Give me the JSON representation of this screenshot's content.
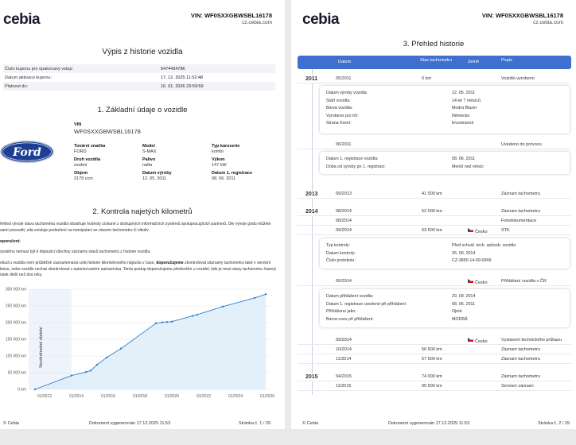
{
  "brand": "cebia",
  "vin_header": "VIN: WF0SXXGBWSBL16178",
  "site": "cz.cebia.com",
  "page1": {
    "title": "Výpis z historie vozidla",
    "coupon": [
      {
        "label": "Číslo kuponu pro opakovaný vstup:",
        "value": "5474434786"
      },
      {
        "label": "Datum aktivace kuponu:",
        "value": "17. 12. 2025 11:52:48"
      },
      {
        "label": "Platnost do:",
        "value": "16. 01. 2026 23:59:59"
      }
    ],
    "section1": "1. Základní údaje o vozidle",
    "car_logo_text": "Ford",
    "vin_label": "VIN",
    "vin_value": "WF0SXXGBWSBL16178",
    "specs": [
      {
        "label": "Tovární značka",
        "value": "FORD"
      },
      {
        "label": "Model",
        "value": "S-MAX"
      },
      {
        "label": "Typ karoserie",
        "value": "kombi"
      },
      {
        "label": "Druh vozidla",
        "value": "osobní"
      },
      {
        "label": "Palivo",
        "value": "nafta"
      },
      {
        "label": "Výkon",
        "value": "147 kW"
      },
      {
        "label": "Objem",
        "value": "2179 ccm"
      },
      {
        "label": "Datum výroby",
        "value": "12. 05. 2011"
      },
      {
        "label": "Datum 1. registrace",
        "value": "08. 06. 2011"
      }
    ],
    "section2": "2. Kontrola najetých kilometrů",
    "para1": "řehled vývoje stavu tachometru vozidla obsahuje hodnoty získané z dostupných informačních systémů spolupracujících partnerů. Dle vývoje grafu můžete sami posoudit, zda existuje podezření na manipulaci se stavem tachometru či nikoliv.",
    "para2_bold": "oporučení:",
    "para3": "systému nemusí být k dispozici všechny záznamy stavů tachometru z historie vozidla.",
    "para4_a": "okud u vozidla není průběžně zaznamenaná celá historie kilometrového nájezdu v čase, ",
    "para4_b": "doporučujeme",
    "para4_c": " zkontrolovat záznamy tachometru také v servisní knize, nebo vozidlo nechat zkontrolovat v autorizovaném autoservisu. Tento postup doporučujeme především u vozidel, kde je mezi stavy tachometru časový úsek delší než dva roky.",
    "footer_left": "© Cebia",
    "footer_center": "Dokument vygenerován 17.12.2025 11:53",
    "footer_right": "Stránka č. 1 / 29"
  },
  "chart_data": {
    "type": "area",
    "title": "",
    "xlabel": "",
    "ylabel": "",
    "y_ticks": [
      "0 km",
      "50 000 km",
      "100 000 km",
      "150 000 km",
      "200 000 km",
      "250 000 km",
      "300 000 km"
    ],
    "x_ticks": [
      "01/2012",
      "01/2014",
      "01/2016",
      "01/2018",
      "01/2020",
      "01/2022",
      "01/2024",
      "01/2026"
    ],
    "x_tick_values": [
      2012.0,
      2014.0,
      2016.0,
      2018.0,
      2020.0,
      2022.0,
      2024.0,
      2026.0
    ],
    "ylim": [
      0,
      300000
    ],
    "xlim": [
      2011.0,
      2026.2
    ],
    "annotation": "Nevěrohodné období",
    "annotation_range": [
      2011.0,
      2013.7
    ],
    "points": [
      {
        "x": 2011.4,
        "y": 0
      },
      {
        "x": 2013.7,
        "y": 41500
      },
      {
        "x": 2014.6,
        "y": 52000
      },
      {
        "x": 2014.9,
        "y": 56500
      },
      {
        "x": 2015.3,
        "y": 74000
      },
      {
        "x": 2015.9,
        "y": 95500
      },
      {
        "x": 2016.8,
        "y": 122000
      },
      {
        "x": 2019.0,
        "y": 198000
      },
      {
        "x": 2019.4,
        "y": 201000
      },
      {
        "x": 2019.7,
        "y": 202000
      },
      {
        "x": 2020.0,
        "y": 203000
      },
      {
        "x": 2021.3,
        "y": 220000
      },
      {
        "x": 2021.6,
        "y": 224000
      },
      {
        "x": 2023.2,
        "y": 248000
      },
      {
        "x": 2025.2,
        "y": 274000
      },
      {
        "x": 2025.9,
        "y": 285000
      }
    ],
    "grid": true
  },
  "page2": {
    "title": "3. Přehled historie",
    "headers": {
      "date": "Datum",
      "odo": "Stav tachometru",
      "country": "Země",
      "desc": "Popis"
    },
    "years": [
      {
        "label": "2011",
        "top": 94
      },
      {
        "label": "2013",
        "top": 239
      },
      {
        "label": "2014",
        "top": 261
      },
      {
        "label": "2015",
        "top": 469
      }
    ],
    "rows": [
      {
        "top": 94,
        "date": "05/2011",
        "odo": "0 km",
        "country": "",
        "flag": false,
        "desc": "Vozidlo vyrobeno"
      },
      {
        "top": 177,
        "date": "06/2011",
        "odo": "",
        "country": "",
        "flag": false,
        "desc": "Uvedeno do provozu"
      },
      {
        "top": 239,
        "date": "09/2013",
        "odo": "41 500 km",
        "country": "",
        "flag": false,
        "desc": "Záznam tachometru"
      },
      {
        "top": 261,
        "date": "08/2014",
        "odo": "52 000 km",
        "country": "",
        "flag": false,
        "desc": "Záznam tachometru"
      },
      {
        "top": 273,
        "date": "08/2014",
        "odo": "",
        "country": "",
        "flag": false,
        "desc": "Fotodokumentace"
      },
      {
        "top": 285,
        "date": "09/2014",
        "odo": "53 500 km",
        "country": "Česko",
        "flag": true,
        "desc": "STK"
      },
      {
        "top": 349,
        "date": "09/2014",
        "odo": "",
        "country": "Česko",
        "flag": true,
        "desc": "Přihlášení vozidla v ČR"
      },
      {
        "top": 423,
        "date": "09/2014",
        "odo": "",
        "country": "Česko",
        "flag": true,
        "desc": "Vystavení technického průkazu"
      },
      {
        "top": 435,
        "date": "10/2014",
        "odo": "56 500 km",
        "country": "",
        "flag": false,
        "desc": "Záznam tachometru"
      },
      {
        "top": 447,
        "date": "11/2014",
        "odo": "57 500 km",
        "country": "",
        "flag": false,
        "desc": "Záznam tachometru"
      },
      {
        "top": 469,
        "date": "04/2015",
        "odo": "74 000 km",
        "country": "",
        "flag": false,
        "desc": "Záznam tachometru"
      },
      {
        "top": 481,
        "date": "11/2015",
        "odo": "95 500 km",
        "country": "",
        "flag": false,
        "desc": "Servisní záznam"
      }
    ],
    "details": [
      {
        "top": 108,
        "height": 60,
        "items": [
          {
            "label": "Datum výroby vozidla:",
            "value": "12. 05. 2011"
          },
          {
            "label": "Stáří vozidla:",
            "value": "14 let 7 měsíců"
          },
          {
            "label": "Barva vozidla:",
            "value": "Modrá Blazer"
          },
          {
            "label": "Vyrobeno pro trh:",
            "value": "Německo"
          },
          {
            "label": "Strana řízení:",
            "value": "levostranné"
          }
        ]
      },
      {
        "top": 191,
        "height": 28,
        "items": [
          {
            "label": "Datum 1. registrace vozidla:",
            "value": "08. 06. 2011"
          },
          {
            "label": "Doba od výroby po 1. registraci:",
            "value": "Menší než měsíc"
          }
        ]
      },
      {
        "top": 300,
        "height": 38,
        "items": [
          {
            "label": "Typ kontroly:",
            "value": "Před schvál. tech. způsob. vozidla"
          },
          {
            "label": "Datum kontroly:",
            "value": "26. 09. 2014"
          },
          {
            "label": "Číslo protokolu:",
            "value": "CZ-3850-14-09-0909"
          }
        ]
      },
      {
        "top": 364,
        "height": 48,
        "items": [
          {
            "label": "Datum přihlášení vozidla:",
            "value": "29. 09. 2014"
          },
          {
            "label": "Datum 1. registrace uvedené při přihlášení:",
            "value": "08. 06. 2011"
          },
          {
            "label": "Přihlášeno jako:",
            "value": "Ojeté"
          },
          {
            "label": "Barva vozu při přihlášení:",
            "value": "MODRÁ"
          }
        ]
      }
    ],
    "footer_left": "© Cebia",
    "footer_center": "Dokument vygenerován 17.12.2025 11:53",
    "footer_right": "Stránka č. 2 / 29"
  },
  "colors": {
    "accent": "#3f70cf",
    "chart_line": "#2f7fd0",
    "chart_fill": "#dcecf9",
    "ford_blue": "#1c3f94"
  }
}
